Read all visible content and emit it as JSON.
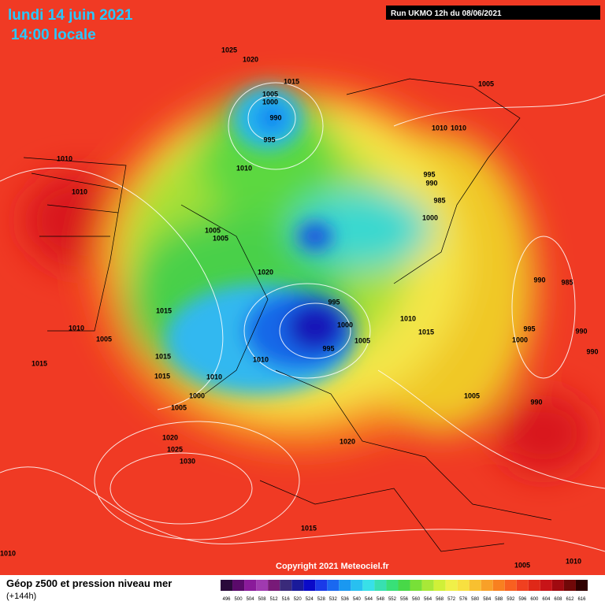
{
  "header": {
    "date": "lundi 14 juin 2021",
    "time": "14:00 locale",
    "run": "Run UKMO 12h du 08/06/2021"
  },
  "copyright": "Copyright 2021 Meteociel.fr",
  "legend": {
    "title": "Géop z500 et pression niveau mer",
    "lead": "(+144h)",
    "scale": [
      "496",
      "500",
      "504",
      "508",
      "512",
      "516",
      "520",
      "524",
      "528",
      "532",
      "536",
      "540",
      "544",
      "548",
      "552",
      "556",
      "560",
      "564",
      "568",
      "572",
      "576",
      "580",
      "584",
      "588",
      "592",
      "596",
      "600",
      "604",
      "608",
      "612",
      "616"
    ]
  },
  "isobar_labels": [
    "1025",
    "1020",
    "1015",
    "1005",
    "1000",
    "990",
    "995",
    "1010",
    "1005",
    "1010",
    "1010",
    "995",
    "990",
    "985",
    "1000",
    "1010",
    "1010",
    "1005",
    "1005",
    "1020",
    "1015",
    "1010",
    "1005",
    "1015",
    "1015",
    "1015",
    "1010",
    "1010",
    "995",
    "1000",
    "995",
    "1005",
    "1010",
    "1015",
    "990",
    "985",
    "995",
    "1000",
    "990",
    "990",
    "1005",
    "990",
    "1000",
    "1005",
    "1020",
    "1025",
    "1030",
    "1020",
    "1015",
    "1010",
    "1005",
    "1010"
  ]
}
